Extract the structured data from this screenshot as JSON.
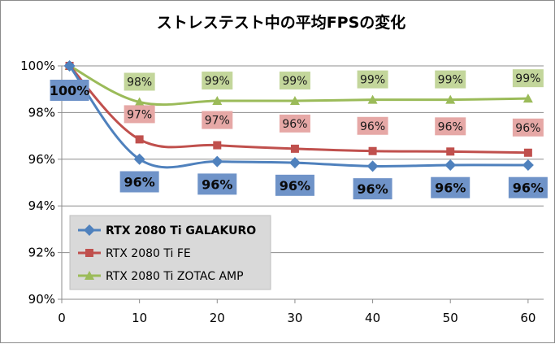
{
  "chart_data": {
    "type": "line",
    "title": "ストレステスト中の平均FPSの変化",
    "xlabel": "",
    "ylabel": "",
    "x": [
      1,
      10,
      20,
      30,
      40,
      50,
      60
    ],
    "xticks": [
      "0",
      "10",
      "20",
      "30",
      "40",
      "50",
      "60"
    ],
    "xlim": [
      0,
      62
    ],
    "ylim": [
      90,
      100
    ],
    "yticks": [
      "90%",
      "92%",
      "94%",
      "96%",
      "98%",
      "100%"
    ],
    "grid": "horizontal",
    "legend_position": "bottom-left",
    "series": [
      {
        "name": "RTX 2080 Ti GALAKURO",
        "values": [
          100,
          96.0,
          95.9,
          95.85,
          95.7,
          95.75,
          95.75
        ],
        "labels": [
          "100%",
          "96%",
          "96%",
          "96%",
          "96%",
          "96%",
          "96%"
        ],
        "color": "#4f81bd",
        "label_bg": "#6f93c8",
        "marker": "diamond"
      },
      {
        "name": "RTX 2080 Ti FE",
        "values": [
          100,
          96.85,
          96.6,
          96.45,
          96.35,
          96.33,
          96.28
        ],
        "labels": [
          "",
          "97%",
          "97%",
          "96%",
          "96%",
          "96%",
          "96%"
        ],
        "color": "#c0504d",
        "label_bg": "#e6a8a6",
        "marker": "square"
      },
      {
        "name": "RTX 2080 Ti ZOTAC AMP",
        "values": [
          100,
          98.45,
          98.5,
          98.5,
          98.55,
          98.55,
          98.6
        ],
        "labels": [
          "",
          "98%",
          "99%",
          "99%",
          "99%",
          "99%",
          "99%"
        ],
        "color": "#9bbb59",
        "label_bg": "#c3d69b",
        "marker": "triangle"
      }
    ]
  }
}
